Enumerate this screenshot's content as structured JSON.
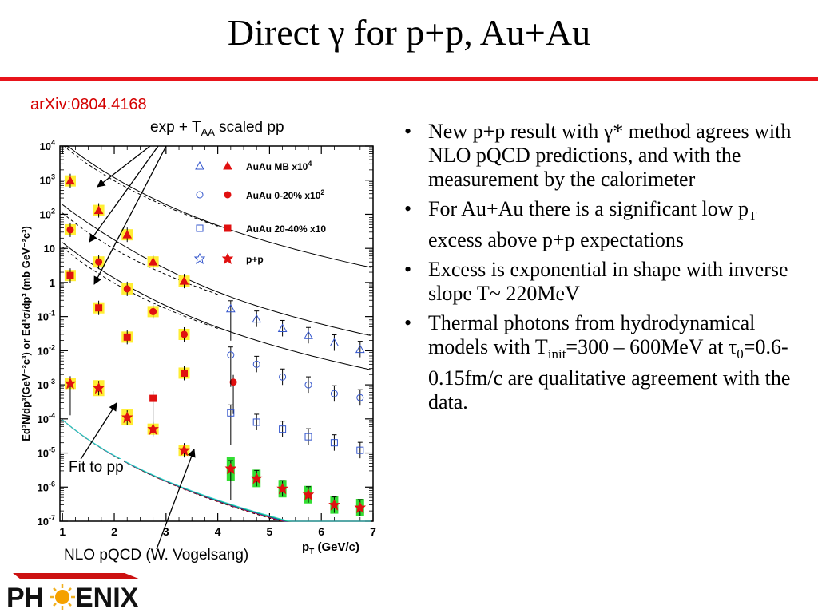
{
  "slide": {
    "title": "Direct γ for p+p, Au+Au",
    "reference": "arXiv:0804.4168"
  },
  "annotations": {
    "exp_prefix": "exp + T",
    "exp_sub": "AA",
    "exp_suffix": " scaled pp",
    "fit_pp": "Fit to pp",
    "nlo": "NLO pQCD (W. Vogelsang)"
  },
  "bullets": [
    [
      {
        "t": "New p+p result with "
      },
      {
        "t": "γ"
      },
      {
        "t": "* method agrees with NLO pQCD predictions, and with the measurement by the calorimeter"
      }
    ],
    [
      {
        "t": "For Au+Au there is a significant low p"
      },
      {
        "t": "T",
        "s": "sub"
      },
      {
        "t": " excess above p+p expectations"
      }
    ],
    [
      {
        "t": "Excess is exponential in shape with inverse slope T~ 220MeV"
      }
    ],
    [
      {
        "t": "Thermal photons from hydrodynamical models with T"
      },
      {
        "t": "init",
        "s": "sub"
      },
      {
        "t": "=300 – 600MeV at "
      },
      {
        "t": "τ"
      },
      {
        "t": "0",
        "s": "sub"
      },
      {
        "t": "=0.6-0.15fm/c are qualitative agreement with the data."
      }
    ]
  ],
  "logo": {
    "text_left": "PH",
    "text_right": "ENIX"
  },
  "chart_data": {
    "type": "scatter",
    "y_scale": "log",
    "xlim": [
      0.95,
      7
    ],
    "ylim": [
      1e-07,
      10000
    ],
    "x_ticks": [
      1,
      2,
      3,
      4,
      5,
      6,
      7
    ],
    "y_ticks": [
      {
        "v": 1e-07,
        "b": "10",
        "e": "-7"
      },
      {
        "v": 1e-06,
        "b": "10",
        "e": "-6"
      },
      {
        "v": 1e-05,
        "b": "10",
        "e": "-5"
      },
      {
        "v": 0.0001,
        "b": "10",
        "e": "-4"
      },
      {
        "v": 0.001,
        "b": "10",
        "e": "-3"
      },
      {
        "v": 0.01,
        "b": "10",
        "e": "-2"
      },
      {
        "v": 0.1,
        "b": "10",
        "e": "-1"
      },
      {
        "v": 1,
        "b": "1",
        "e": ""
      },
      {
        "v": 10,
        "b": "10",
        "e": ""
      },
      {
        "v": 100,
        "b": "10",
        "e": "2"
      },
      {
        "v": 1000,
        "b": "10",
        "e": "3"
      },
      {
        "v": 10000,
        "b": "10",
        "e": "4"
      }
    ],
    "xlabel": "p",
    "xlabel_sub": "T",
    "xlabel_unit": " (GeV/c)",
    "ylabel": "Ed³N/dp³(GeV⁻²c³) or Ed³σ/dp³ (mb GeV⁻²c³)",
    "legend": [
      {
        "label": "AuAu MB x10",
        "sup": "4"
      },
      {
        "label": "AuAu 0-20% x10",
        "sup": "2"
      },
      {
        "label": "AuAu 20-40% x10",
        "sup": ""
      },
      {
        "label": "p+p",
        "sup": ""
      }
    ],
    "series": [
      {
        "name": "AuAu MB x10⁴",
        "marker": "triangle",
        "low_pt": [
          {
            "x": 1.15,
            "y": 950
          },
          {
            "x": 1.7,
            "y": 130
          },
          {
            "x": 2.25,
            "y": 25
          },
          {
            "x": 2.75,
            "y": 4
          },
          {
            "x": 3.35,
            "y": 1.1
          }
        ],
        "high_pt": [
          {
            "x": 4.25,
            "y": 0.17
          },
          {
            "x": 4.75,
            "y": 0.085
          },
          {
            "x": 5.25,
            "y": 0.045
          },
          {
            "x": 5.75,
            "y": 0.028
          },
          {
            "x": 6.25,
            "y": 0.017
          },
          {
            "x": 6.75,
            "y": 0.011
          }
        ],
        "fit": {
          "a": 24000,
          "b": 2.8,
          "T": 0.43,
          "A": 700000,
          "p0": 1.0,
          "n": 6.0
        }
      },
      {
        "name": "AuAu 0-20% x10²",
        "marker": "circle",
        "low_pt": [
          {
            "x": 1.15,
            "y": 35
          },
          {
            "x": 1.7,
            "y": 4
          },
          {
            "x": 2.25,
            "y": 0.65
          },
          {
            "x": 2.75,
            "y": 0.14
          },
          {
            "x": 3.35,
            "y": 0.03
          },
          {
            "x": 4.3,
            "y": 0.0012
          }
        ],
        "high_pt": [
          {
            "x": 4.25,
            "y": 0.0075
          },
          {
            "x": 4.75,
            "y": 0.004
          },
          {
            "x": 5.25,
            "y": 0.0017
          },
          {
            "x": 5.75,
            "y": 0.001
          },
          {
            "x": 6.25,
            "y": 0.00055
          },
          {
            "x": 6.75,
            "y": 0.00042
          }
        ],
        "fit": {
          "a": 850,
          "b": 2.8,
          "T": 0.43,
          "A": 7000,
          "p0": 1.0,
          "n": 6.0
        }
      },
      {
        "name": "AuAu 20-40% x10",
        "marker": "square",
        "low_pt": [
          {
            "x": 1.15,
            "y": 1.6
          },
          {
            "x": 1.7,
            "y": 0.18
          },
          {
            "x": 2.25,
            "y": 0.025
          },
          {
            "x": 2.75,
            "y": 0.0004
          },
          {
            "x": 3.35,
            "y": 0.0022
          }
        ],
        "high_pt": [
          {
            "x": 4.25,
            "y": 0.00015
          },
          {
            "x": 4.75,
            "y": 8e-05
          },
          {
            "x": 5.25,
            "y": 5e-05
          },
          {
            "x": 5.75,
            "y": 3e-05
          },
          {
            "x": 6.25,
            "y": 2e-05
          },
          {
            "x": 6.75,
            "y": 1.2e-05
          }
        ],
        "fit": {
          "a": 40,
          "b": 2.8,
          "T": 0.43,
          "A": 700,
          "p0": 1.0,
          "n": 6.0
        }
      },
      {
        "name": "p+p",
        "marker": "star",
        "low_pt": [
          {
            "x": 1.15,
            "y": 0.0011
          },
          {
            "x": 1.7,
            "y": 0.0008
          },
          {
            "x": 2.25,
            "y": 0.00011
          },
          {
            "x": 2.75,
            "y": 5e-05
          },
          {
            "x": 3.35,
            "y": 1.2e-05
          }
        ],
        "high_pt": [
          {
            "x": 4.25,
            "y": 3.5e-06
          },
          {
            "x": 4.75,
            "y": 1.8e-06
          },
          {
            "x": 5.25,
            "y": 9e-07
          },
          {
            "x": 5.75,
            "y": 6e-07
          },
          {
            "x": 6.25,
            "y": 3e-07
          },
          {
            "x": 6.75,
            "y": 2.5e-07
          }
        ],
        "fit": {
          "A": 0.006,
          "p0": 1.0,
          "n": 6.0
        }
      }
    ],
    "colors": {
      "open_marker": "#3355cc",
      "filled_marker": "#e01010",
      "sys_box": "#ffee33",
      "pp_sys_box": "#33dd33"
    }
  }
}
